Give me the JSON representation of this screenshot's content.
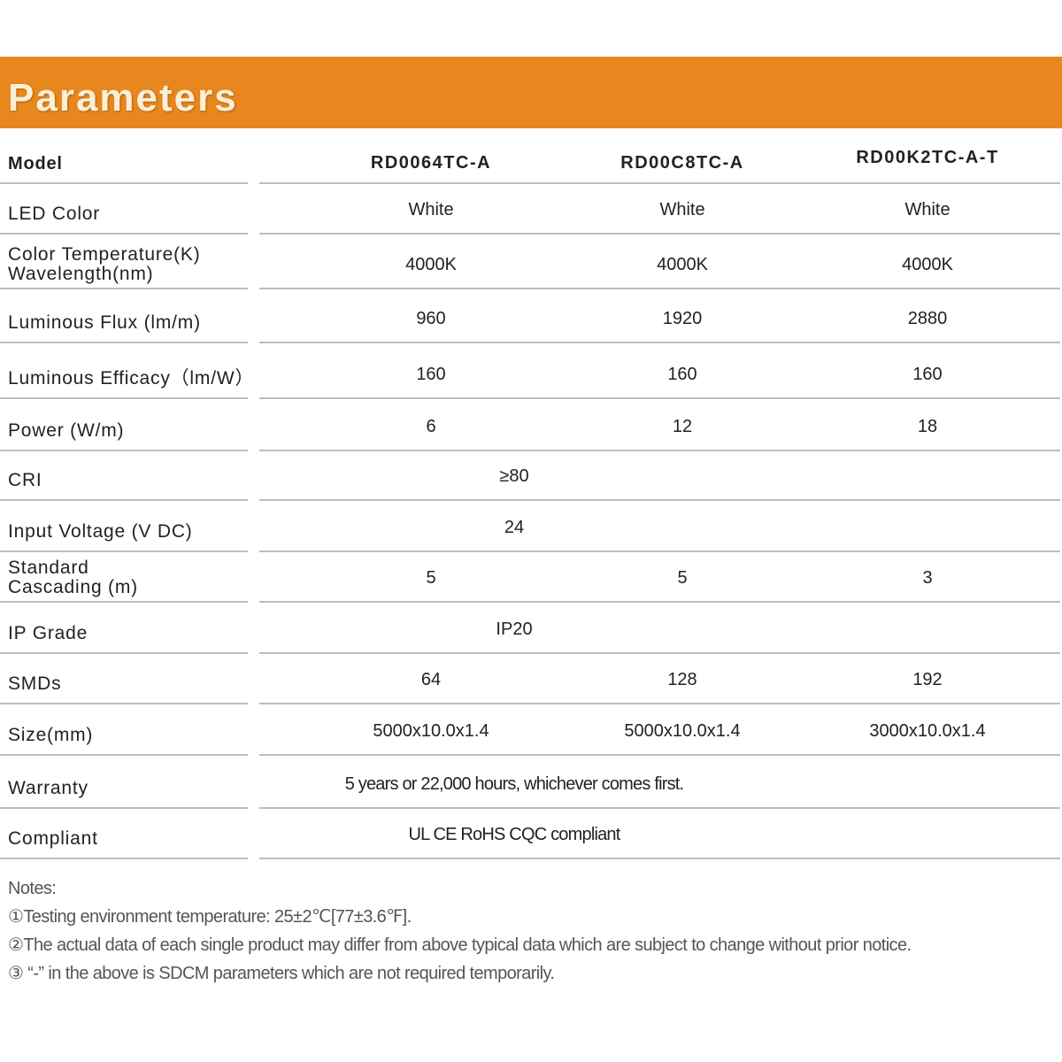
{
  "title": "Parameters",
  "accent_color": "#E8871E",
  "table": {
    "header": {
      "label": "Model",
      "values": [
        "RD0064TC-A",
        "RD00C8TC-A",
        "RD00K2TC-A-T"
      ]
    },
    "rows": [
      {
        "label": "LED Color",
        "values": [
          "White",
          "White",
          "White"
        ]
      },
      {
        "label": "Color Temperature(K)\nWavelength(nm)",
        "values": [
          "4000K",
          "4000K",
          "4000K"
        ]
      },
      {
        "label": "Luminous Flux (lm/m)",
        "values": [
          "960",
          "1920",
          "2880"
        ]
      },
      {
        "label": "Luminous Efficacy（lm/W）",
        "values": [
          "160",
          "160",
          "160"
        ]
      },
      {
        "label": "Power (W/m)",
        "values": [
          "6",
          "12",
          "18"
        ]
      },
      {
        "label": "CRI",
        "span": "≥80"
      },
      {
        "label": "Input Voltage (V DC)",
        "span": "24"
      },
      {
        "label": "Standard\nCascading (m)",
        "values": [
          "5",
          "5",
          "3"
        ]
      },
      {
        "label": "IP Grade",
        "span": "IP20"
      },
      {
        "label": "SMDs",
        "values": [
          "64",
          "128",
          "192"
        ]
      },
      {
        "label": "Size(mm)",
        "values": [
          "5000x10.0x1.4",
          "5000x10.0x1.4",
          "3000x10.0x1.4"
        ]
      },
      {
        "label": "Warranty",
        "span": "5 years or 22,000 hours, whichever comes first."
      },
      {
        "label": "Compliant",
        "span": "UL  CE  RoHS  CQC compliant"
      }
    ]
  },
  "notes": {
    "heading": "Notes:",
    "items": [
      "①Testing environment temperature: 25±2℃[77±3.6℉].",
      "②The actual data of each single product may differ from above typical data which are subject to change without prior notice.",
      "③ “-” in the above is SDCM parameters which are not required temporarily."
    ]
  }
}
